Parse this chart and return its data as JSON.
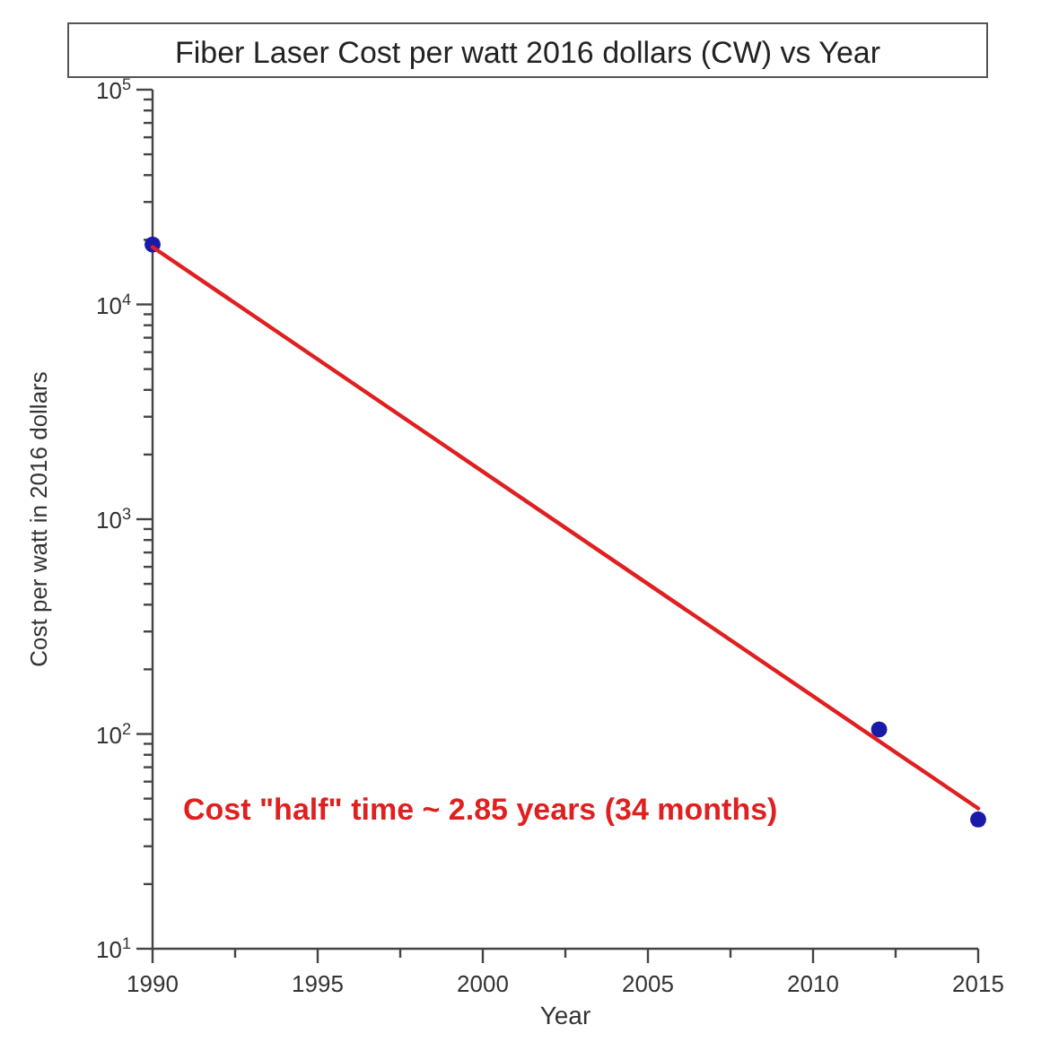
{
  "chart_data": {
    "type": "scatter",
    "title": "Fiber Laser Cost per watt 2016 dollars (CW) vs Year",
    "xlabel": "Year",
    "ylabel": "Cost per watt in 2016 dollars",
    "log": "y",
    "grid": false,
    "marker": "circle",
    "xlim": [
      1990,
      2015
    ],
    "xticks": [
      1990,
      {
        "value": 1992.5,
        "label": null
      },
      1995,
      {
        "value": 1997.5,
        "label": null
      },
      2000,
      {
        "value": 2002.5,
        "label": null
      },
      2005,
      {
        "value": 2007.5,
        "label": null
      },
      2010,
      {
        "value": 2012.5,
        "label": null
      },
      2015
    ],
    "ylim": [
      10,
      100000
    ],
    "yticks": [
      {
        "value": 10,
        "label": "10$^{1}$"
      },
      {
        "value": 20,
        "label": null
      },
      {
        "value": 30,
        "label": null
      },
      {
        "value": 40,
        "label": null
      },
      {
        "value": 50,
        "label": null
      },
      {
        "value": 60,
        "label": null
      },
      {
        "value": 70,
        "label": null
      },
      {
        "value": 80,
        "label": null
      },
      {
        "value": 90,
        "label": null
      },
      {
        "value": 100,
        "label": "10$^{2}$"
      },
      {
        "value": 200,
        "label": null
      },
      {
        "value": 300,
        "label": null
      },
      {
        "value": 400,
        "label": null
      },
      {
        "value": 500,
        "label": null
      },
      {
        "value": 600,
        "label": null
      },
      {
        "value": 700,
        "label": null
      },
      {
        "value": 800,
        "label": null
      },
      {
        "value": 900,
        "label": null
      },
      {
        "value": 1000,
        "label": "10$^{3}$"
      },
      {
        "value": 2000,
        "label": null
      },
      {
        "value": 3000,
        "label": null
      },
      {
        "value": 4000,
        "label": null
      },
      {
        "value": 5000,
        "label": null
      },
      {
        "value": 6000,
        "label": null
      },
      {
        "value": 7000,
        "label": null
      },
      {
        "value": 8000,
        "label": null
      },
      {
        "value": 9000,
        "label": null
      },
      {
        "value": 10000,
        "label": "10$^{4}$"
      },
      {
        "value": 20000,
        "label": null
      },
      {
        "value": 30000,
        "label": null
      },
      {
        "value": 40000,
        "label": null
      },
      {
        "value": 50000,
        "label": null
      },
      {
        "value": 60000,
        "label": null
      },
      {
        "value": 70000,
        "label": null
      },
      {
        "value": 80000,
        "label": null
      },
      {
        "value": 90000,
        "label": null
      },
      {
        "value": 100000,
        "label": "10$^{5}$"
      }
    ],
    "series": [
      {
        "color": "#1a1aa8",
        "x": [
          1990,
          2012,
          2015
        ],
        "values": [
          19000,
          105,
          40
        ]
      },
      {
        "type": "line",
        "color": "#e02020",
        "line_style": "solid",
        "marker": "none",
        "x": [
          1990,
          2015
        ],
        "values": [
          18500,
          45
        ]
      }
    ],
    "annotations": [
      "Cost \"half\" time ~ 2.85 years (34 months)"
    ]
  }
}
